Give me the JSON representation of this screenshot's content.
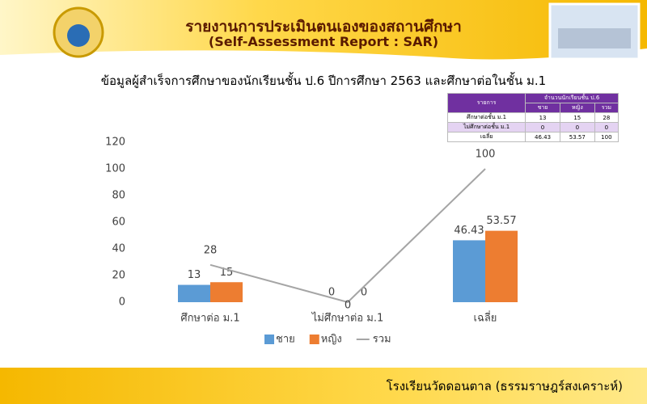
{
  "header": {
    "title": "รายงานการประเมินตนเองของสถานศึกษา",
    "subtitle": "(Self-Assessment Report : SAR)"
  },
  "table": {
    "header": [
      "รายการ",
      "จำนวนนักเรียนชั้น ป.6"
    ],
    "subheader": [
      "ชาย",
      "หญิง",
      "รวม"
    ],
    "rows": [
      [
        "ศึกษาต่อชั้น ม.1",
        13,
        15,
        28
      ],
      [
        "ไม่ศึกษาต่อชั้น ม.1",
        0,
        0,
        0
      ],
      [
        "เฉลี่ย",
        46.43,
        53.57,
        100
      ]
    ]
  },
  "chart_data": {
    "type": "bar",
    "title": "ข้อมูลผู้สำเร็จการศึกษาของนักเรียนชั้น ป.6 ปีการศึกษา 2563 และศึกษาต่อในชั้น ม.1",
    "categories": [
      "ศึกษาต่อ ม.1",
      "ไม่ศึกษาต่อ ม.1",
      "เฉลี่ย"
    ],
    "series": [
      {
        "name": "ชาย",
        "color": "#5b9bd5",
        "type": "bar",
        "values": [
          13,
          0,
          46.43
        ]
      },
      {
        "name": "หญิง",
        "color": "#ed7d31",
        "type": "bar",
        "values": [
          15,
          0,
          53.57
        ]
      },
      {
        "name": "รวม",
        "color": "#a5a5a5",
        "type": "line",
        "values": [
          28,
          0,
          100
        ]
      }
    ],
    "ylim": [
      0,
      120
    ],
    "yticks": [
      0,
      20,
      40,
      60,
      80,
      100,
      120
    ],
    "grid": false
  },
  "footer": {
    "text": "โรงเรียนวัดดอนตาล  (ธรรมราษฎร์สงเคราะห์)"
  }
}
